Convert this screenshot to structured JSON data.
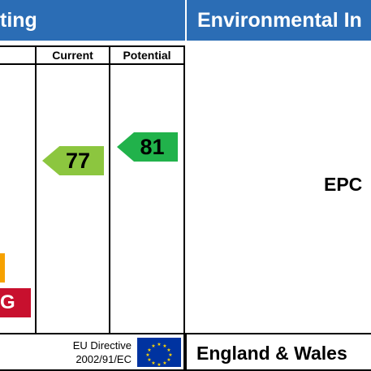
{
  "energy_panel": {
    "title": "Energy Efficiency Rating",
    "title_visible_part": "ting",
    "columns": {
      "current": "Current",
      "potential": "Potential"
    },
    "ratings": {
      "current": "77",
      "potential": "81"
    },
    "bands_visible": [
      {
        "letter": "F",
        "color": "#f6a100",
        "label": ""
      },
      {
        "letter": "G",
        "color": "#c8102e",
        "label": "G"
      }
    ],
    "footer": {
      "directive_line1": "EU Directive",
      "directive_line2": "2002/91/EC"
    }
  },
  "environmental_panel": {
    "title": "Environmental In",
    "body_text": "EPC",
    "footer": {
      "region": "England & Wales"
    }
  },
  "colors": {
    "header_blue": "#2b6db5",
    "current_arrow": "#8cc63f",
    "potential_arrow": "#21b24b",
    "band_f": "#f6a100",
    "band_g": "#c8102e",
    "eu_flag": "#0033a0"
  }
}
